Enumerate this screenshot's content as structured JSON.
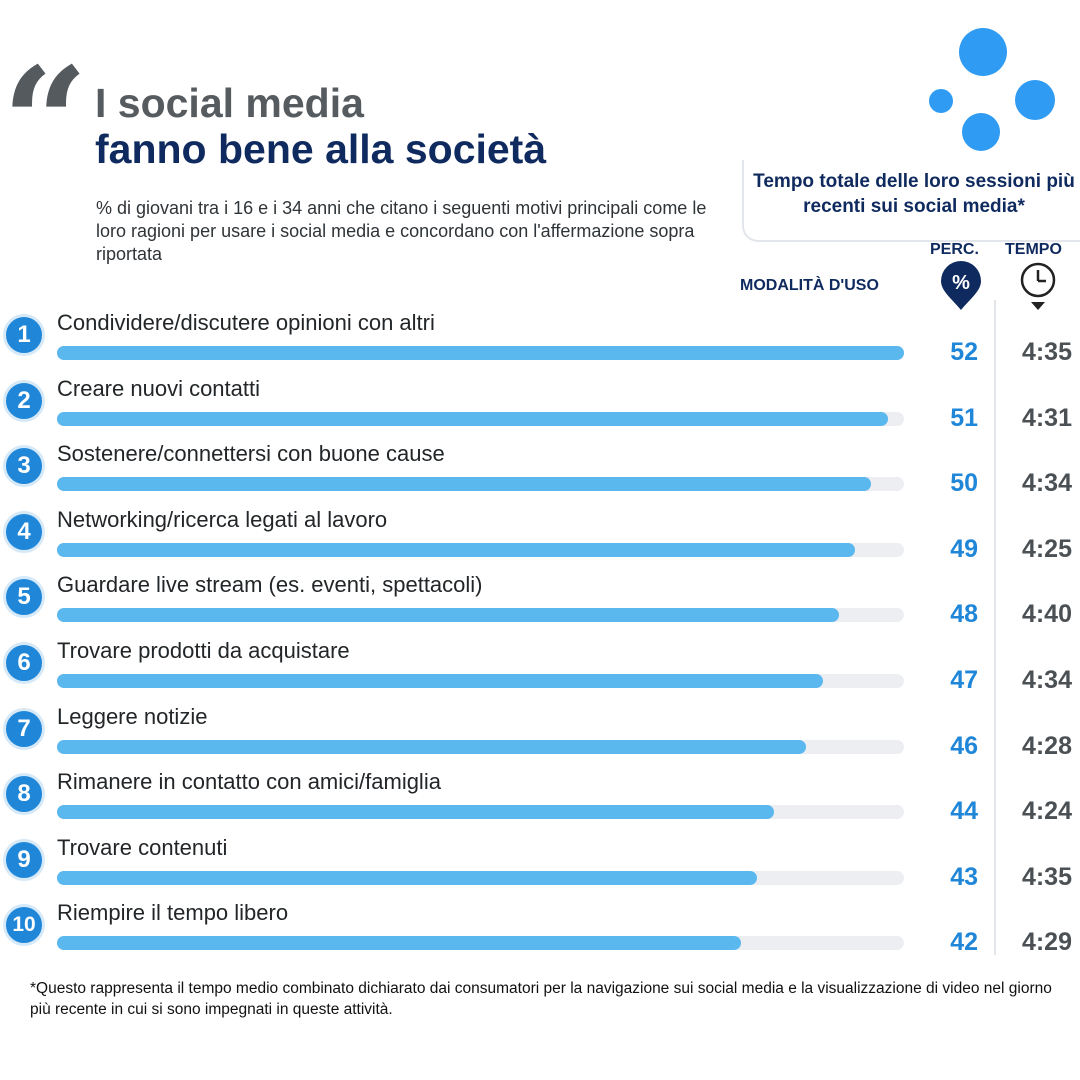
{
  "header": {
    "quote_glyph": "“",
    "title_line1": "I social media",
    "title_line2": "fanno bene alla società",
    "subtitle": "% di giovani tra i 16 e i 34 anni che citano i seguenti motivi principali come le loro ragioni per usare i social media e concordano con l'affermazione sopra riportata"
  },
  "session_box": {
    "title": "Tempo totale delle loro sessioni più recenti sui social media*"
  },
  "columns": {
    "perc": "PERC.",
    "time": "TEMPO",
    "mode": "MODALITÀ D'USO",
    "perc_symbol": "%"
  },
  "colors": {
    "bar_fill": "#5ab8ef",
    "bar_track": "#eceef1",
    "badge": "#1f86d8",
    "navy": "#0f2a5e",
    "dots": "#2f9bf2"
  },
  "icons": {
    "percent_pin": "percent-pin-icon",
    "clock": "clock-icon"
  },
  "chart_data": {
    "type": "bar",
    "orientation": "horizontal",
    "xlim": [
      0,
      52
    ],
    "categories": [
      "Condividere/discutere opinioni con altri",
      "Creare nuovi contatti",
      "Sostenere/connettersi con buone cause",
      "Networking/ricerca legati al lavoro",
      "Guardare live stream (es. eventi, spettacoli)",
      "Trovare prodotti da acquistare",
      "Leggere notizie",
      "Rimanere in contatto con amici/famiglia",
      "Trovare contenuti",
      "Riempire il tempo libero"
    ],
    "ranks": [
      "1",
      "2",
      "3",
      "4",
      "5",
      "6",
      "7",
      "8",
      "9",
      "10"
    ],
    "values": [
      52,
      51,
      50,
      49,
      48,
      47,
      46,
      44,
      43,
      42
    ],
    "times": [
      "4:35",
      "4:31",
      "4:34",
      "4:25",
      "4:40",
      "4:34",
      "4:28",
      "4:24",
      "4:35",
      "4:29"
    ]
  },
  "footnote": "*Questo rappresenta il tempo medio combinato dichiarato dai consumatori per la navigazione sui social media e la visualizzazione di video nel giorno più recente in cui si sono impegnati in queste attività."
}
